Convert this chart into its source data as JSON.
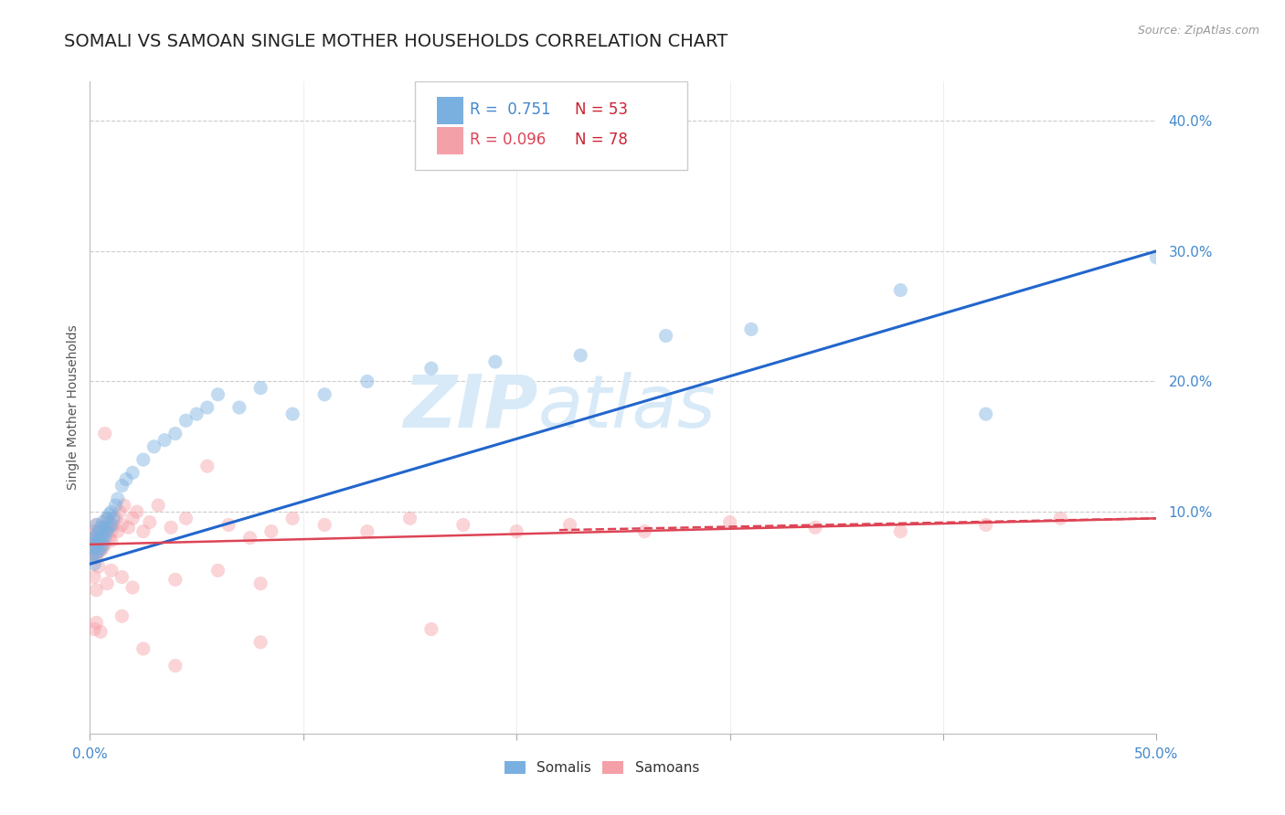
{
  "title": "SOMALI VS SAMOAN SINGLE MOTHER HOUSEHOLDS CORRELATION CHART",
  "source": "Source: ZipAtlas.com",
  "ylabel": "Single Mother Households",
  "xlim": [
    0.0,
    0.5
  ],
  "ylim": [
    -0.07,
    0.43
  ],
  "yticks": [
    0.1,
    0.2,
    0.3,
    0.4
  ],
  "ytick_labels": [
    "10.0%",
    "20.0%",
    "30.0%",
    "40.0%"
  ],
  "xticks": [
    0.0,
    0.1,
    0.2,
    0.3,
    0.4,
    0.5
  ],
  "xtick_labels": [
    "0.0%",
    "",
    "",
    "",
    "",
    "50.0%"
  ],
  "somali_R": 0.751,
  "somali_N": 53,
  "samoan_R": 0.096,
  "samoan_N": 78,
  "somali_color": "#7ab0e0",
  "samoan_color": "#f4a0a8",
  "somali_line_color": "#2266cc",
  "samoan_line_color": "#dd4455",
  "grid_color": "#cccccc",
  "title_color": "#222222",
  "axis_tick_color": "#4488cc",
  "watermark_zip": "ZIP",
  "watermark_atlas": "atlas",
  "watermark_color": "#d8eaf8",
  "legend_R_color": "#4488cc",
  "legend_N_color": "#cc2233",
  "bg_color": "#ffffff",
  "title_fontsize": 14,
  "axis_label_fontsize": 10,
  "tick_fontsize": 11,
  "scatter_size": 120,
  "scatter_alpha": 0.45,
  "somali_x": [
    0.001,
    0.001,
    0.002,
    0.002,
    0.002,
    0.003,
    0.003,
    0.003,
    0.003,
    0.004,
    0.004,
    0.004,
    0.005,
    0.005,
    0.005,
    0.006,
    0.006,
    0.006,
    0.007,
    0.007,
    0.008,
    0.008,
    0.009,
    0.009,
    0.01,
    0.01,
    0.011,
    0.012,
    0.013,
    0.015,
    0.017,
    0.02,
    0.025,
    0.03,
    0.035,
    0.04,
    0.045,
    0.05,
    0.055,
    0.06,
    0.07,
    0.08,
    0.095,
    0.11,
    0.13,
    0.16,
    0.19,
    0.23,
    0.27,
    0.31,
    0.38,
    0.42,
    0.5
  ],
  "somali_y": [
    0.065,
    0.075,
    0.06,
    0.072,
    0.08,
    0.068,
    0.075,
    0.082,
    0.09,
    0.07,
    0.078,
    0.085,
    0.072,
    0.08,
    0.088,
    0.075,
    0.082,
    0.092,
    0.08,
    0.088,
    0.085,
    0.095,
    0.088,
    0.098,
    0.09,
    0.1,
    0.095,
    0.105,
    0.11,
    0.12,
    0.125,
    0.13,
    0.14,
    0.15,
    0.155,
    0.16,
    0.17,
    0.175,
    0.18,
    0.19,
    0.18,
    0.195,
    0.175,
    0.19,
    0.2,
    0.21,
    0.215,
    0.22,
    0.235,
    0.24,
    0.27,
    0.175,
    0.295
  ],
  "samoan_x": [
    0.001,
    0.001,
    0.001,
    0.002,
    0.002,
    0.002,
    0.002,
    0.003,
    0.003,
    0.003,
    0.003,
    0.004,
    0.004,
    0.004,
    0.005,
    0.005,
    0.005,
    0.006,
    0.006,
    0.006,
    0.007,
    0.007,
    0.007,
    0.008,
    0.008,
    0.009,
    0.009,
    0.01,
    0.01,
    0.011,
    0.012,
    0.013,
    0.014,
    0.015,
    0.016,
    0.018,
    0.02,
    0.022,
    0.025,
    0.028,
    0.032,
    0.038,
    0.045,
    0.055,
    0.065,
    0.075,
    0.085,
    0.095,
    0.11,
    0.13,
    0.15,
    0.175,
    0.2,
    0.225,
    0.26,
    0.3,
    0.34,
    0.38,
    0.42,
    0.455,
    0.002,
    0.003,
    0.004,
    0.008,
    0.01,
    0.015,
    0.02,
    0.04,
    0.06,
    0.08,
    0.002,
    0.003,
    0.005,
    0.015,
    0.025,
    0.04,
    0.08,
    0.16
  ],
  "samoan_y": [
    0.075,
    0.068,
    0.082,
    0.07,
    0.078,
    0.065,
    0.085,
    0.072,
    0.08,
    0.065,
    0.09,
    0.075,
    0.082,
    0.07,
    0.078,
    0.085,
    0.07,
    0.08,
    0.072,
    0.088,
    0.16,
    0.075,
    0.085,
    0.088,
    0.095,
    0.08,
    0.092,
    0.085,
    0.078,
    0.09,
    0.095,
    0.085,
    0.1,
    0.09,
    0.105,
    0.088,
    0.095,
    0.1,
    0.085,
    0.092,
    0.105,
    0.088,
    0.095,
    0.135,
    0.09,
    0.08,
    0.085,
    0.095,
    0.09,
    0.085,
    0.095,
    0.09,
    0.085,
    0.09,
    0.085,
    0.092,
    0.088,
    0.085,
    0.09,
    0.095,
    0.05,
    0.04,
    0.058,
    0.045,
    0.055,
    0.05,
    0.042,
    0.048,
    0.055,
    0.045,
    0.01,
    0.015,
    0.008,
    0.02,
    -0.005,
    -0.018,
    0.0,
    0.01
  ],
  "somali_line_x": [
    0.0,
    0.5
  ],
  "somali_line_y": [
    0.06,
    0.3
  ],
  "samoan_line_x": [
    0.0,
    0.5
  ],
  "samoan_line_y": [
    0.075,
    0.095
  ]
}
